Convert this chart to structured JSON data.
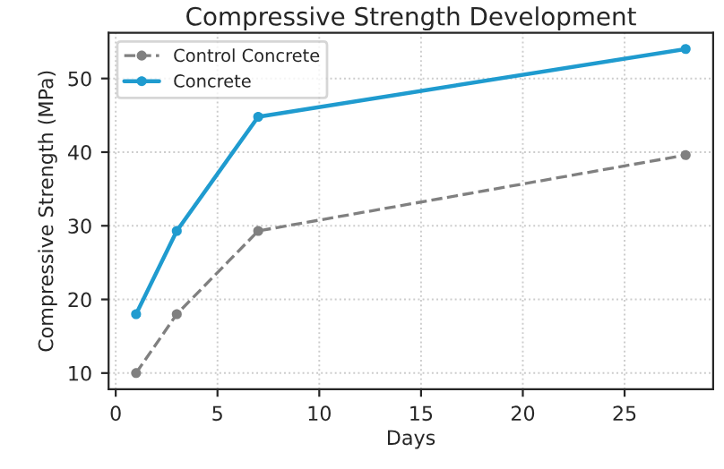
{
  "chart_data": {
    "type": "line",
    "title": "Compressive Strength Development",
    "xlabel": "Days",
    "ylabel": "Compressive Strength (MPa)",
    "x": [
      1,
      3,
      7,
      28
    ],
    "series": [
      {
        "name": "Control Concrete",
        "color": "#808080",
        "values": [
          10,
          18,
          29.3,
          39.6
        ],
        "line_style": "dashed"
      },
      {
        "name": "Concrete",
        "color": "#1f9bcf",
        "values": [
          18,
          29.3,
          44.8,
          54
        ],
        "line_style": "solid"
      }
    ],
    "marker": "circle",
    "xlim": [
      -0.35,
      29.35
    ],
    "ylim": [
      7.8,
      56.2
    ],
    "xticks": [
      0,
      5,
      10,
      15,
      20,
      25
    ],
    "yticks": [
      10,
      20,
      30,
      40,
      50
    ],
    "grid": true,
    "legend": "top left"
  }
}
